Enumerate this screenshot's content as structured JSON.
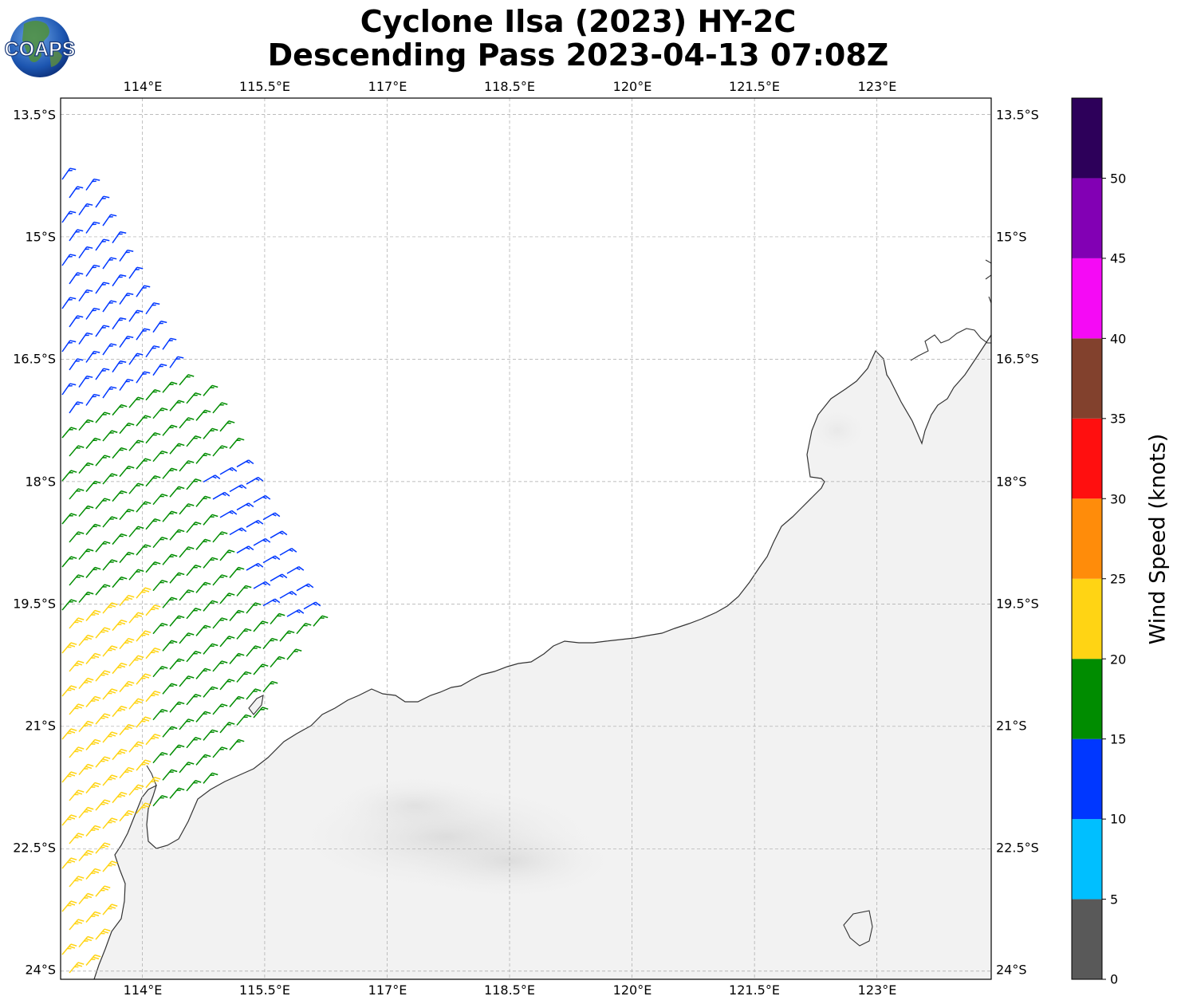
{
  "title": {
    "line1": "Cyclone Ilsa (2023) HY-2C",
    "line2": "Descending Pass 2023-04-13 07:08Z"
  },
  "logo": {
    "text": "COAPS"
  },
  "map": {
    "lon_range": [
      113.0,
      124.4
    ],
    "lat_range": [
      -24.1,
      -13.3
    ],
    "lon_ticks": [
      "114°E",
      "115.5°E",
      "117°E",
      "118.5°E",
      "120°E",
      "121.5°E",
      "123°E"
    ],
    "lat_ticks": [
      "13.5°S",
      "15°S",
      "16.5°S",
      "18°S",
      "19.5°S",
      "21°S",
      "22.5°S",
      "24°S"
    ],
    "gridlines": true,
    "background": "grayscale infrared imagery over land, white ocean"
  },
  "colorbar": {
    "label": "Wind Speed (knots)",
    "tick_labels": [
      "0",
      "5",
      "10",
      "15",
      "20",
      "25",
      "30",
      "35",
      "40",
      "45",
      "50"
    ],
    "bins": [
      {
        "min": 0,
        "max": 5,
        "color": "#595959"
      },
      {
        "min": 5,
        "max": 10,
        "color": "#00bfff"
      },
      {
        "min": 10,
        "max": 15,
        "color": "#0037ff"
      },
      {
        "min": 15,
        "max": 20,
        "color": "#008c00"
      },
      {
        "min": 20,
        "max": 25,
        "color": "#ffd414"
      },
      {
        "min": 25,
        "max": 30,
        "color": "#ff8c0a"
      },
      {
        "min": 30,
        "max": 35,
        "color": "#ff0f0f"
      },
      {
        "min": 35,
        "max": 40,
        "color": "#82412d"
      },
      {
        "min": 40,
        "max": 45,
        "color": "#f50af5"
      },
      {
        "min": 45,
        "max": 50,
        "color": "#8200b4"
      },
      {
        "min": 50,
        "max": 55,
        "color": "#2d005a"
      }
    ]
  },
  "wind_barbs": {
    "units": "knots",
    "colors": {
      "blue": "#0037ff",
      "green": "#008c00",
      "yellow": "#ffd414"
    },
    "swath_rows": 38
  }
}
